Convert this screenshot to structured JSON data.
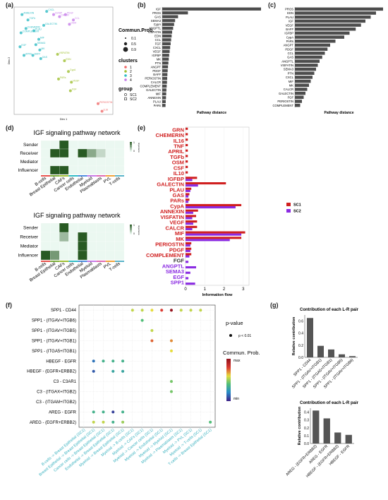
{
  "labels": {
    "a": "(a)",
    "b": "(b)",
    "c": "(c)",
    "d": "(d)",
    "e": "(e)",
    "f": "(f)",
    "g": "(g)"
  },
  "chart_data": [
    {
      "id": "a",
      "type": "scatter",
      "xlabel": "Dim 1",
      "ylabel": "Dim 2",
      "legend_size_title": "Commun.Prob.",
      "legend_sizes": [
        "0.1",
        "0.5",
        "0.9"
      ],
      "legend_cluster_title": "clusters",
      "clusters": [
        {
          "name": "1",
          "color": "#f06b6b"
        },
        {
          "name": "2",
          "color": "#9fbf32"
        },
        {
          "name": "3",
          "color": "#2fbcc4"
        },
        {
          "name": "4",
          "color": "#c57be8"
        }
      ],
      "legend_group_title": "group",
      "groups": [
        "SC1",
        "SC2"
      ],
      "points": [
        {
          "label": "ANNEXIN",
          "x": 0.08,
          "y": 0.93,
          "c": 2
        },
        {
          "label": "TGFb",
          "x": 0.14,
          "y": 0.88,
          "c": 2
        },
        {
          "label": "CXCL",
          "x": 0.33,
          "y": 0.96,
          "c": 2
        },
        {
          "label": "GALECTIN",
          "x": 0.3,
          "y": 0.83,
          "c": 2
        },
        {
          "label": "COMPLEMENT",
          "x": 0.07,
          "y": 0.76,
          "c": 2
        },
        {
          "label": "PLAU",
          "x": 0.2,
          "y": 0.78,
          "c": 2
        },
        {
          "label": "CHEMERIN",
          "x": 0.12,
          "y": 0.8,
          "c": 2
        },
        {
          "label": "SEMA3",
          "x": 0.22,
          "y": 0.65,
          "c": 2
        },
        {
          "label": "MK",
          "x": 0.26,
          "y": 0.6,
          "c": 2
        },
        {
          "label": "APRIL",
          "x": 0.1,
          "y": 0.55,
          "c": 2
        },
        {
          "label": "BAFF",
          "x": 0.19,
          "y": 0.55,
          "c": 2
        },
        {
          "label": "EGF",
          "x": 0.06,
          "y": 0.63,
          "c": 2
        },
        {
          "label": "MIF",
          "x": 0.25,
          "y": 0.7,
          "c": 2
        },
        {
          "label": "GAS",
          "x": 0.27,
          "y": 0.52,
          "c": 2
        },
        {
          "label": "PDGF",
          "x": 0.52,
          "y": 0.93,
          "c": 3
        },
        {
          "label": "CCL",
          "x": 0.6,
          "y": 0.88,
          "c": 3
        },
        {
          "label": "OSM",
          "x": 0.56,
          "y": 0.84,
          "c": 3
        },
        {
          "label": "CALCR",
          "x": 0.46,
          "y": 0.91,
          "c": 3
        },
        {
          "label": "IGFBP",
          "x": 0.4,
          "y": 0.93,
          "c": 3
        },
        {
          "label": "VISFATIN",
          "x": 0.44,
          "y": 0.56,
          "c": 1
        },
        {
          "label": "EDN",
          "x": 0.51,
          "y": 0.5,
          "c": 1
        },
        {
          "label": "CypA",
          "x": 0.55,
          "y": 0.4,
          "c": 1
        },
        {
          "label": "VEGF",
          "x": 0.58,
          "y": 0.3,
          "c": 1
        },
        {
          "label": "PARs",
          "x": 0.45,
          "y": 0.33,
          "c": 1
        },
        {
          "label": "FGF",
          "x": 0.57,
          "y": 0.22,
          "c": 1
        },
        {
          "label": "PERIOSTIN",
          "x": 0.85,
          "y": 0.1,
          "c": 0
        },
        {
          "label": "IL16",
          "x": 0.89,
          "y": 0.03,
          "c": 0
        }
      ]
    },
    {
      "id": "b",
      "type": "bar",
      "orientation": "horizontal",
      "xlabel": "Pathway distance",
      "categories": [
        "IGF",
        "PROS",
        "GAS",
        "SEMA3",
        "CypA",
        "ANGPTL",
        "VISFATIN",
        "EDN",
        "CCL",
        "FGF",
        "CXCL",
        "VEGF",
        "IGFBP",
        "MK",
        "PTN",
        "ANGPT",
        "PDGF",
        "BAFF",
        "PERIOSTIN",
        "CALCR",
        "COMPLEMENT",
        "GALECTIN",
        "MIF",
        "ANNEXIN",
        "PLAU",
        "PARs"
      ],
      "values": [
        10,
        2.6,
        1.6,
        1.3,
        1.2,
        1.1,
        1.0,
        0.95,
        0.9,
        0.85,
        0.8,
        0.75,
        0.7,
        0.66,
        0.62,
        0.58,
        0.55,
        0.52,
        0.5,
        0.48,
        0.45,
        0.42,
        0.4,
        0.38,
        0.35,
        0.33
      ]
    },
    {
      "id": "c",
      "type": "bar",
      "orientation": "horizontal",
      "xlabel": "Pathway distance",
      "categories": [
        "PROS",
        "EDN",
        "PLAU",
        "IGF",
        "VEGF",
        "BAFF",
        "IGFBP",
        "CypA",
        "PARs",
        "ANGPT",
        "PDGF",
        "CCL",
        "GAS",
        "ANGPTL",
        "VISFATIN",
        "SEMA3",
        "PTN",
        "CXCL",
        "MIF",
        "MK",
        "CALCR",
        "GALECTIN",
        "FGF",
        "PERIOSTIN",
        "COMPLEMENT"
      ],
      "values": [
        10,
        9.2,
        8.6,
        8.0,
        7.5,
        6.9,
        6.2,
        5.6,
        4.6,
        4.0,
        3.7,
        3.4,
        3.1,
        2.8,
        2.6,
        2.4,
        2.2,
        2.0,
        1.8,
        1.6,
        1.4,
        1.2,
        1.0,
        0.8,
        0.6
      ]
    },
    {
      "id": "d1",
      "type": "heatmap",
      "title": "IGF signaling pathway network",
      "rows": [
        "Sender",
        "Receiver",
        "Mediator",
        "Influencer"
      ],
      "cols": [
        "B-cells",
        "Breast Epithelial",
        "CAFs",
        "Cancer cells",
        "Endothelial",
        "Myeloid",
        "Plasmablasts",
        "PVL",
        "T-cells"
      ],
      "values": [
        [
          0,
          0,
          1,
          0,
          0,
          0,
          0,
          0,
          0
        ],
        [
          0,
          1,
          1,
          0,
          1,
          0.5,
          0.2,
          0,
          0
        ],
        [
          0,
          0,
          0,
          0,
          0,
          0,
          0,
          0,
          0
        ],
        [
          0,
          1,
          1,
          0,
          0,
          0,
          0,
          0,
          0
        ]
      ],
      "colorbar_label": "Importance",
      "colorbar_ticks": [
        "0",
        "1"
      ]
    },
    {
      "id": "d2",
      "type": "heatmap",
      "title": "IGF signaling pathway network",
      "rows": [
        "Sender",
        "Receiver",
        "Mediator",
        "Influencer"
      ],
      "cols": [
        "B-cells",
        "Breast Epithelial",
        "CAFs",
        "Cancer cells",
        "Endothelial",
        "Myeloid",
        "Plasmablasts",
        "PVL",
        "T-cells"
      ],
      "values": [
        [
          0,
          0,
          1,
          0,
          0,
          0,
          0,
          0,
          0
        ],
        [
          0,
          0,
          0.4,
          0,
          1,
          0,
          0,
          0,
          0
        ],
        [
          0,
          0,
          0,
          0,
          1,
          0,
          0,
          0,
          0
        ],
        [
          1,
          0.6,
          0,
          0,
          1,
          0,
          0,
          0,
          0
        ]
      ],
      "colorbar_label": "Importance",
      "colorbar_ticks": [
        "0",
        "1"
      ]
    },
    {
      "id": "e",
      "type": "bar",
      "orientation": "horizontal",
      "xlabel": "Information flow",
      "xlim": [
        0,
        3.3
      ],
      "xticks": [
        0,
        1,
        2,
        3
      ],
      "categories": [
        "GRN",
        "CHEMERIN",
        "IL16",
        "TNF",
        "APRIL",
        "TGFb",
        "OSM",
        "CSF",
        "IL10",
        "IGFBP",
        "GALECTIN",
        "PLAU",
        "GAS",
        "PARs",
        "CypA",
        "ANNEXIN",
        "VISFATIN",
        "VEGF",
        "CALCR",
        "MIF",
        "MK",
        "PERIOSTIN",
        "PDGF",
        "COMPLEMENT",
        "FGF",
        "ANGPTL",
        "SEMA3",
        "EGF",
        "SPP1"
      ],
      "label_colors": [
        "#d01f1f",
        "#d01f1f",
        "#d01f1f",
        "#d01f1f",
        "#d01f1f",
        "#d01f1f",
        "#d01f1f",
        "#d01f1f",
        "#d01f1f",
        "#d01f1f",
        "#d01f1f",
        "#d01f1f",
        "#d01f1f",
        "#d01f1f",
        "#d01f1f",
        "#d01f1f",
        "#d01f1f",
        "#d01f1f",
        "#d01f1f",
        "#d01f1f",
        "#d01f1f",
        "#d01f1f",
        "#d01f1f",
        "#d01f1f",
        "#333333",
        "#8b2be2",
        "#8b2be2",
        "#8b2be2",
        "#8b2be2"
      ],
      "series": [
        {
          "name": "SC1",
          "color": "#d01f1f",
          "values": [
            0.12,
            0.12,
            0.12,
            0.12,
            0.12,
            0.12,
            0.12,
            0.12,
            0.12,
            0.6,
            2.1,
            0.3,
            0.2,
            0.2,
            2.9,
            0.65,
            0.55,
            0.6,
            0.6,
            3.1,
            2.9,
            0.3,
            0.3,
            0.3,
            0,
            0,
            0,
            0,
            0
          ]
        },
        {
          "name": "SC2",
          "color": "#8b2be2",
          "values": [
            0,
            0,
            0,
            0,
            0,
            0,
            0,
            0,
            0,
            0.35,
            0.65,
            0.25,
            0.15,
            0.15,
            2.6,
            0.4,
            0.35,
            0.4,
            0.35,
            2.9,
            2.3,
            0.25,
            0.25,
            0.2,
            0.15,
            0.55,
            0.25,
            0.15,
            0.5
          ]
        }
      ]
    },
    {
      "id": "f",
      "type": "scatter",
      "ylabels": [
        "SPP1 - CD44",
        "SPP1 - (ITGAV+ITGB6)",
        "SPP1 - (ITGAV+ITGB5)",
        "SPP1 - (ITGAV+ITGB1)",
        "SPP1 - (ITGA5+ITGB1)",
        "HBEGF - EGFR",
        "HBEGF - (EGFR+ERBB2)",
        "C3 - C3AR1",
        "C3 - (ITGAX+ITGB2)",
        "C3 - (ITGAM+ITGB2)",
        "AREG - EGFR",
        "AREG - (EGFR+ERBB2)"
      ],
      "xlabels": [
        "B-cells -> Breast Epithelial (SC1)",
        "Breast Epithelial -> Breast Epithelial (SC1)",
        "Cancer cells -> Breast Epithelial (SC1)",
        "Endothelial -> Breast Epithelial (SC1)",
        "Myeloid -> Breast Epithelial (SC1)",
        "Myeloid -> B-cells (SC1)",
        "Myeloid -> CAFs (SC1)",
        "Myeloid -> Cancer cells (SC1)",
        "Myeloid -> Endothelial (SC1)",
        "Myeloid -> Myeloid (SC1)",
        "Myeloid -> Plasmablasts (SC1)",
        "Myeloid -> PVL (SC1)",
        "Myeloid -> T-cells (SC1)",
        "T-cells -> Breast Epithelial (SC1)"
      ],
      "legend_p_title": "p-value",
      "legend_p_label": "p < 0.01",
      "legend_prob_title": "Commun. Prob.",
      "legend_prob_ticks": [
        "max",
        "min"
      ],
      "points": [
        {
          "r": 0,
          "c": 5,
          "v": 0.55
        },
        {
          "r": 0,
          "c": 6,
          "v": 0.55
        },
        {
          "r": 0,
          "c": 7,
          "v": 0.6
        },
        {
          "r": 0,
          "c": 8,
          "v": 0.8
        },
        {
          "r": 0,
          "c": 9,
          "v": 1.0
        },
        {
          "r": 0,
          "c": 10,
          "v": 0.55
        },
        {
          "r": 0,
          "c": 11,
          "v": 0.55
        },
        {
          "r": 0,
          "c": 12,
          "v": 0.55
        },
        {
          "r": 1,
          "c": 6,
          "v": 0.4
        },
        {
          "r": 2,
          "c": 7,
          "v": 0.55
        },
        {
          "r": 3,
          "c": 7,
          "v": 0.75
        },
        {
          "r": 3,
          "c": 9,
          "v": 0.7
        },
        {
          "r": 4,
          "c": 9,
          "v": 0.6
        },
        {
          "r": 5,
          "c": 1,
          "v": 0.15
        },
        {
          "r": 5,
          "c": 2,
          "v": 0.35
        },
        {
          "r": 5,
          "c": 3,
          "v": 0.35
        },
        {
          "r": 5,
          "c": 4,
          "v": 0.35
        },
        {
          "r": 6,
          "c": 1,
          "v": 0.1
        },
        {
          "r": 6,
          "c": 3,
          "v": 0.3
        },
        {
          "r": 6,
          "c": 4,
          "v": 0.3
        },
        {
          "r": 7,
          "c": 9,
          "v": 0.45
        },
        {
          "r": 8,
          "c": 9,
          "v": 0.45
        },
        {
          "r": 10,
          "c": 1,
          "v": 0.35
        },
        {
          "r": 10,
          "c": 2,
          "v": 0.35
        },
        {
          "r": 10,
          "c": 3,
          "v": 0.05
        },
        {
          "r": 10,
          "c": 4,
          "v": 0.35
        },
        {
          "r": 11,
          "c": 1,
          "v": 0.55
        },
        {
          "r": 11,
          "c": 2,
          "v": 0.55
        },
        {
          "r": 11,
          "c": 3,
          "v": 0.35
        },
        {
          "r": 11,
          "c": 4,
          "v": 0.5
        },
        {
          "r": 11,
          "c": 13,
          "v": 0.4
        }
      ]
    },
    {
      "id": "g1",
      "type": "bar",
      "title": "Contribution of each L-R pair",
      "ylabel": "Relative contribution",
      "ylim": [
        0,
        0.7
      ],
      "yticks": [
        "0.0",
        "0.2",
        "0.4",
        "0.6"
      ],
      "categories": [
        "SPP1 - CD44",
        "SPP1 - (ITGAV+ITGB1)",
        "SPP1 - (ITGA5+ITGB1)",
        "SPP1 - (ITGAV+ITGB5)",
        "SPP1 - (ITGAV+ITGB6)"
      ],
      "values": [
        0.65,
        0.19,
        0.13,
        0.05,
        0.02
      ]
    },
    {
      "id": "g2",
      "type": "bar",
      "title": "Contribution of each L-R pair",
      "ylabel": "Relative contribution",
      "ylim": [
        0,
        0.45
      ],
      "yticks": [
        "0.0",
        "0.1",
        "0.2",
        "0.3",
        "0.4"
      ],
      "categories": [
        "AREG - (EGFR+ERBB2)",
        "AREG - EGFR",
        "HBEGF - (EGFR+ERBB2)",
        "HBEGF - EGFR"
      ],
      "values": [
        0.42,
        0.32,
        0.14,
        0.11
      ]
    }
  ]
}
